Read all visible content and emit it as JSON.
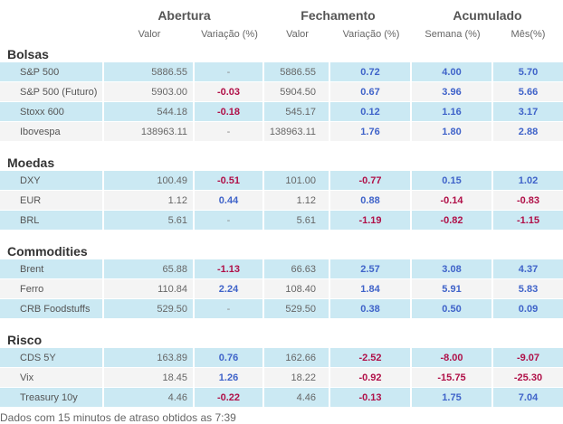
{
  "header": {
    "groups": [
      "Abertura",
      "Fechamento",
      "Acumulado"
    ],
    "columns": [
      "Valor",
      "Variação (%)",
      "Valor",
      "Variação (%)",
      "Semana (%)",
      "Mês(%)"
    ]
  },
  "sections": [
    {
      "title": "Bolsas",
      "rows": [
        [
          "S&P 500",
          "5886.55",
          "-",
          "5886.55",
          "0.72",
          "4.00",
          "5.70"
        ],
        [
          "S&P 500 (Futuro)",
          "5903.00",
          "-0.03",
          "5904.50",
          "0.67",
          "3.96",
          "5.66"
        ],
        [
          "Stoxx 600",
          "544.18",
          "-0.18",
          "545.17",
          "0.12",
          "1.16",
          "3.17"
        ],
        [
          "Ibovespa",
          "138963.11",
          "-",
          "138963.11",
          "1.76",
          "1.80",
          "2.88"
        ]
      ]
    },
    {
      "title": "Moedas",
      "rows": [
        [
          "DXY",
          "100.49",
          "-0.51",
          "101.00",
          "-0.77",
          "0.15",
          "1.02"
        ],
        [
          "EUR",
          "1.12",
          "0.44",
          "1.12",
          "0.88",
          "-0.14",
          "-0.83"
        ],
        [
          "BRL",
          "5.61",
          "-",
          "5.61",
          "-1.19",
          "-0.82",
          "-1.15"
        ]
      ]
    },
    {
      "title": "Commodities",
      "rows": [
        [
          "Brent",
          "65.88",
          "-1.13",
          "66.63",
          "2.57",
          "3.08",
          "4.37"
        ],
        [
          "Ferro",
          "110.84",
          "2.24",
          "108.40",
          "1.84",
          "5.91",
          "5.83"
        ],
        [
          "CRB Foodstuffs",
          "529.50",
          "-",
          "529.50",
          "0.38",
          "0.50",
          "0.09"
        ]
      ]
    },
    {
      "title": "Risco",
      "rows": [
        [
          "CDS 5Y",
          "163.89",
          "0.76",
          "162.66",
          "-2.52",
          "-8.00",
          "-9.07"
        ],
        [
          "Vix",
          "18.45",
          "1.26",
          "18.22",
          "-0.92",
          "-15.75",
          "-25.30"
        ],
        [
          "Treasury 10y",
          "4.46",
          "-0.22",
          "4.46",
          "-0.13",
          "1.75",
          "7.04"
        ]
      ]
    }
  ],
  "footer": "Dados com 15 minutos de atraso obtidos as 7:39"
}
